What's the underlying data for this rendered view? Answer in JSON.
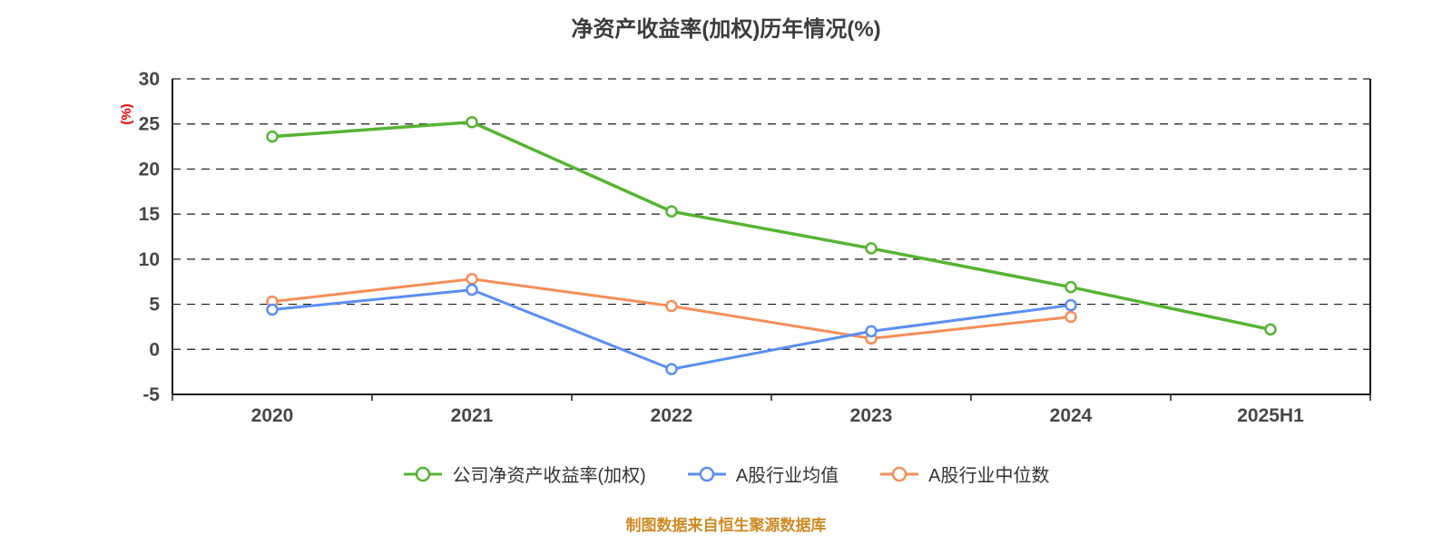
{
  "chart_data": {
    "type": "line",
    "title": "净资产收益率(加权)历年情况(%)",
    "ylabel": "(%)",
    "xlabel": "",
    "categories": [
      "2020",
      "2021",
      "2022",
      "2023",
      "2024",
      "2025H1"
    ],
    "ylim": [
      -5,
      30
    ],
    "yticks": [
      30,
      25,
      20,
      15,
      10,
      5,
      0,
      -5
    ],
    "grid": "horizontal-dashed",
    "legend_position": "bottom",
    "series": [
      {
        "name": "公司净资产收益率(加权)",
        "color": "#56b432",
        "values": [
          23.6,
          25.2,
          15.3,
          11.2,
          6.9,
          2.2
        ]
      },
      {
        "name": "A股行业均值",
        "color": "#5b8ef4",
        "values": [
          4.4,
          6.6,
          -2.2,
          2.0,
          4.9,
          null
        ]
      },
      {
        "name": "A股行业中位数",
        "color": "#f78e58",
        "values": [
          5.3,
          7.8,
          4.8,
          1.2,
          3.6,
          null
        ]
      }
    ]
  },
  "footer": {
    "note": "制图数据来自恒生聚源数据库",
    "color": "#cf8a24"
  },
  "style": {
    "background": "#ffffff",
    "axis_color": "#1a1a1a",
    "tick_label_color": "#474747",
    "ylabel_color": "#e60000",
    "title_color": "#3c3c3c",
    "marker_fill": "#ffffff"
  }
}
